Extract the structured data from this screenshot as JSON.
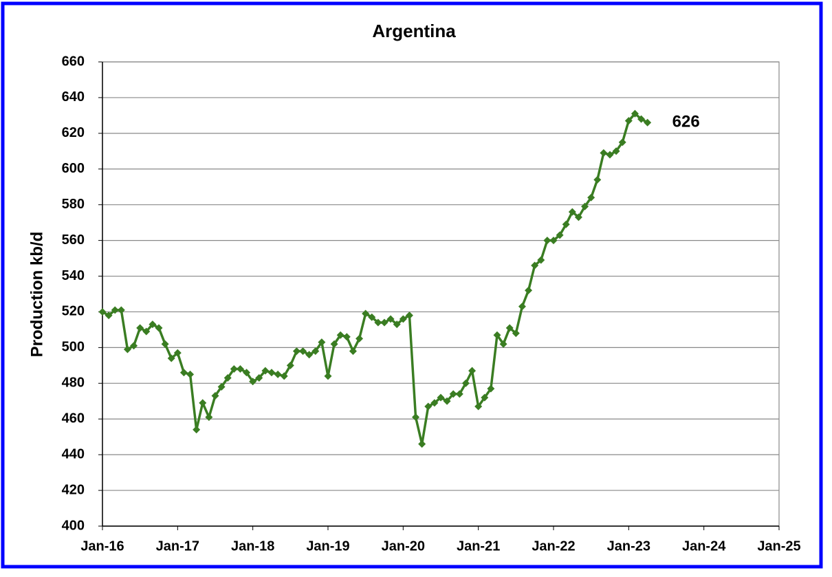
{
  "chart_data": {
    "type": "line",
    "title": "Argentina",
    "y_label": "Production kb/d",
    "x": [
      "2016-01",
      "2016-02",
      "2016-03",
      "2016-04",
      "2016-05",
      "2016-06",
      "2016-07",
      "2016-08",
      "2016-09",
      "2016-10",
      "2016-11",
      "2016-12",
      "2017-01",
      "2017-02",
      "2017-03",
      "2017-04",
      "2017-05",
      "2017-06",
      "2017-07",
      "2017-08",
      "2017-09",
      "2017-10",
      "2017-11",
      "2017-12",
      "2018-01",
      "2018-02",
      "2018-03",
      "2018-04",
      "2018-05",
      "2018-06",
      "2018-07",
      "2018-08",
      "2018-09",
      "2018-10",
      "2018-11",
      "2018-12",
      "2019-01",
      "2019-02",
      "2019-03",
      "2019-04",
      "2019-05",
      "2019-06",
      "2019-07",
      "2019-08",
      "2019-09",
      "2019-10",
      "2019-11",
      "2019-12",
      "2020-01",
      "2020-02",
      "2020-03",
      "2020-04",
      "2020-05",
      "2020-06",
      "2020-07",
      "2020-08",
      "2020-09",
      "2020-10",
      "2020-11",
      "2020-12",
      "2021-01",
      "2021-02",
      "2021-03",
      "2021-04",
      "2021-05",
      "2021-06",
      "2021-07",
      "2021-08",
      "2021-09",
      "2021-10",
      "2021-11",
      "2021-12",
      "2022-01",
      "2022-02",
      "2022-03",
      "2022-04",
      "2022-05",
      "2022-06",
      "2022-07",
      "2022-08",
      "2022-09",
      "2022-10",
      "2022-11",
      "2022-12",
      "2023-01",
      "2023-02",
      "2023-03",
      "2023-04"
    ],
    "series": [
      {
        "name": "Argentina",
        "color": "#3a7d22",
        "values": [
          520,
          518,
          521,
          521,
          499,
          501,
          511,
          509,
          513,
          511,
          502,
          494,
          497,
          486,
          485,
          454,
          469,
          461,
          473,
          478,
          483,
          488,
          488,
          486,
          481,
          483,
          487,
          486,
          485,
          484,
          490,
          498,
          498,
          496,
          498,
          503,
          484,
          502,
          507,
          506,
          498,
          505,
          519,
          517,
          514,
          514,
          516,
          513,
          516,
          518,
          461,
          446,
          467,
          469,
          472,
          470,
          474,
          474,
          480,
          487,
          467,
          472,
          477,
          507,
          502,
          511,
          508,
          523,
          532,
          546,
          549,
          560,
          560,
          563,
          569,
          576,
          573,
          579,
          584,
          594,
          609,
          608,
          610,
          615,
          627,
          631,
          628,
          626
        ]
      }
    ],
    "annotation": "626",
    "xlim": [
      "2016-01",
      "2025-01"
    ],
    "xticks": [
      {
        "value": "2016-01",
        "label": "Jan-16"
      },
      {
        "value": "2017-01",
        "label": "Jan-17"
      },
      {
        "value": "2018-01",
        "label": "Jan-18"
      },
      {
        "value": "2019-01",
        "label": "Jan-19"
      },
      {
        "value": "2020-01",
        "label": "Jan-20"
      },
      {
        "value": "2021-01",
        "label": "Jan-21"
      },
      {
        "value": "2022-01",
        "label": "Jan-22"
      },
      {
        "value": "2023-01",
        "label": "Jan-23"
      },
      {
        "value": "2024-01",
        "label": "Jan-24"
      },
      {
        "value": "2025-01",
        "label": "Jan-25"
      }
    ],
    "ylim": [
      400,
      660
    ],
    "yticks": [
      400,
      420,
      440,
      460,
      480,
      500,
      520,
      540,
      560,
      580,
      600,
      620,
      640,
      660
    ],
    "grid": true
  }
}
